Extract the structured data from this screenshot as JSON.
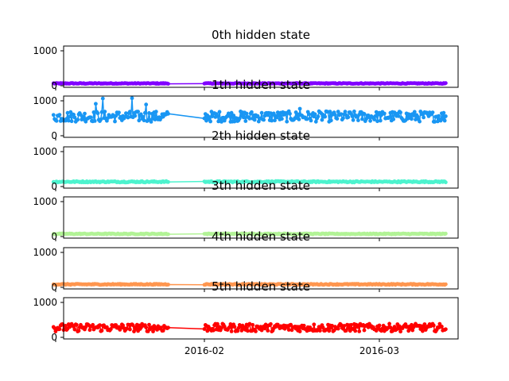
{
  "chart_data": {
    "type": "line",
    "layout": "6 vertically stacked subplots sharing the x axis",
    "x_axis": {
      "type": "date",
      "range": [
        "2016-01-07",
        "2016-03-12"
      ],
      "tick_dates": [
        "2016-01-07",
        "2016-02-01",
        "2016-03-01"
      ],
      "tick_labels": [
        "",
        "2016-02",
        "2016-03"
      ]
    },
    "y_axis": {
      "ylim": [
        -50,
        1120
      ],
      "ticks": [
        0,
        1000
      ],
      "tick_labels": [
        "0",
        "1000"
      ]
    },
    "grid": false,
    "legend": "none",
    "marker": "circle",
    "gap": {
      "start": "2016-01-26",
      "end": "2016-02-01"
    },
    "panels": [
      {
        "title": "0th hidden state",
        "color": "#8000ff",
        "mean": 60,
        "jitter": 12,
        "spikes": []
      },
      {
        "title": "1th hidden state",
        "color": "#1996f3",
        "mean": 540,
        "jitter": 150,
        "spikes": [
          [
            0.14,
            1050
          ],
          [
            0.22,
            1060
          ],
          [
            0.12,
            900
          ],
          [
            0.26,
            880
          ],
          [
            0.59,
            760
          ]
        ]
      },
      {
        "title": "2th hidden state",
        "color": "#4df3ce",
        "mean": 130,
        "jitter": 18,
        "spikes": []
      },
      {
        "title": "3th hidden state",
        "color": "#b2f396",
        "mean": 70,
        "jitter": 14,
        "spikes": []
      },
      {
        "title": "4th hidden state",
        "color": "#ff964f",
        "mean": 80,
        "jitter": 14,
        "spikes": []
      },
      {
        "title": "5th hidden state",
        "color": "#ff0000",
        "mean": 270,
        "jitter": 110,
        "spikes": []
      }
    ]
  }
}
